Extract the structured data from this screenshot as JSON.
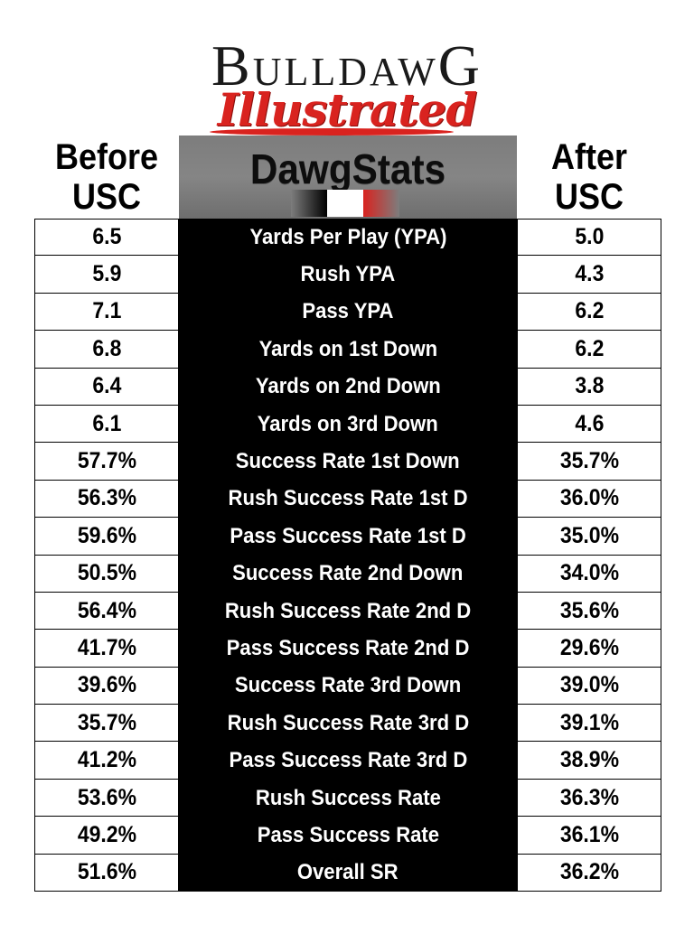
{
  "logo": {
    "top_text_parts": [
      "B",
      "ULLDAW",
      "G"
    ],
    "script_text": "Illustrated"
  },
  "header": {
    "before_line1": "Before",
    "before_line2": "USC",
    "title": "DawgStats",
    "after_line1": "After",
    "after_line2": "USC"
  },
  "colors": {
    "brand_red": "#d9231f",
    "black": "#000000",
    "gray": "#808080"
  },
  "chart_data": {
    "type": "table",
    "columns": [
      "Before USC",
      "DawgStats",
      "After USC"
    ],
    "rows": [
      {
        "stat": "Yards Per Play (YPA)",
        "before": "6.5",
        "after": "5.0"
      },
      {
        "stat": "Rush YPA",
        "before": "5.9",
        "after": "4.3"
      },
      {
        "stat": "Pass YPA",
        "before": "7.1",
        "after": "6.2"
      },
      {
        "stat": "Yards on 1st Down",
        "before": "6.8",
        "after": "6.2"
      },
      {
        "stat": "Yards on 2nd Down",
        "before": "6.4",
        "after": "3.8"
      },
      {
        "stat": "Yards on 3rd Down",
        "before": "6.1",
        "after": "4.6"
      },
      {
        "stat": "Success Rate 1st Down",
        "before": "57.7%",
        "after": "35.7%"
      },
      {
        "stat": "Rush Success Rate 1st  D",
        "before": "56.3%",
        "after": "36.0%"
      },
      {
        "stat": "Pass Success Rate 1st D",
        "before": "59.6%",
        "after": "35.0%"
      },
      {
        "stat": "Success Rate 2nd Down",
        "before": "50.5%",
        "after": "34.0%"
      },
      {
        "stat": "Rush Success Rate 2nd D",
        "before": "56.4%",
        "after": "35.6%"
      },
      {
        "stat": "Pass Success Rate 2nd D",
        "before": "41.7%",
        "after": "29.6%"
      },
      {
        "stat": "Success Rate 3rd Down",
        "before": "39.6%",
        "after": "39.0%"
      },
      {
        "stat": "Rush Success Rate 3rd D",
        "before": "35.7%",
        "after": "39.1%"
      },
      {
        "stat": "Pass Success Rate 3rd D",
        "before": "41.2%",
        "after": "38.9%"
      },
      {
        "stat": "Rush Success Rate",
        "before": "53.6%",
        "after": "36.3%"
      },
      {
        "stat": "Pass Success Rate",
        "before": "49.2%",
        "after": "36.1%"
      },
      {
        "stat": "Overall SR",
        "before": "51.6%",
        "after": "36.2%"
      }
    ]
  }
}
